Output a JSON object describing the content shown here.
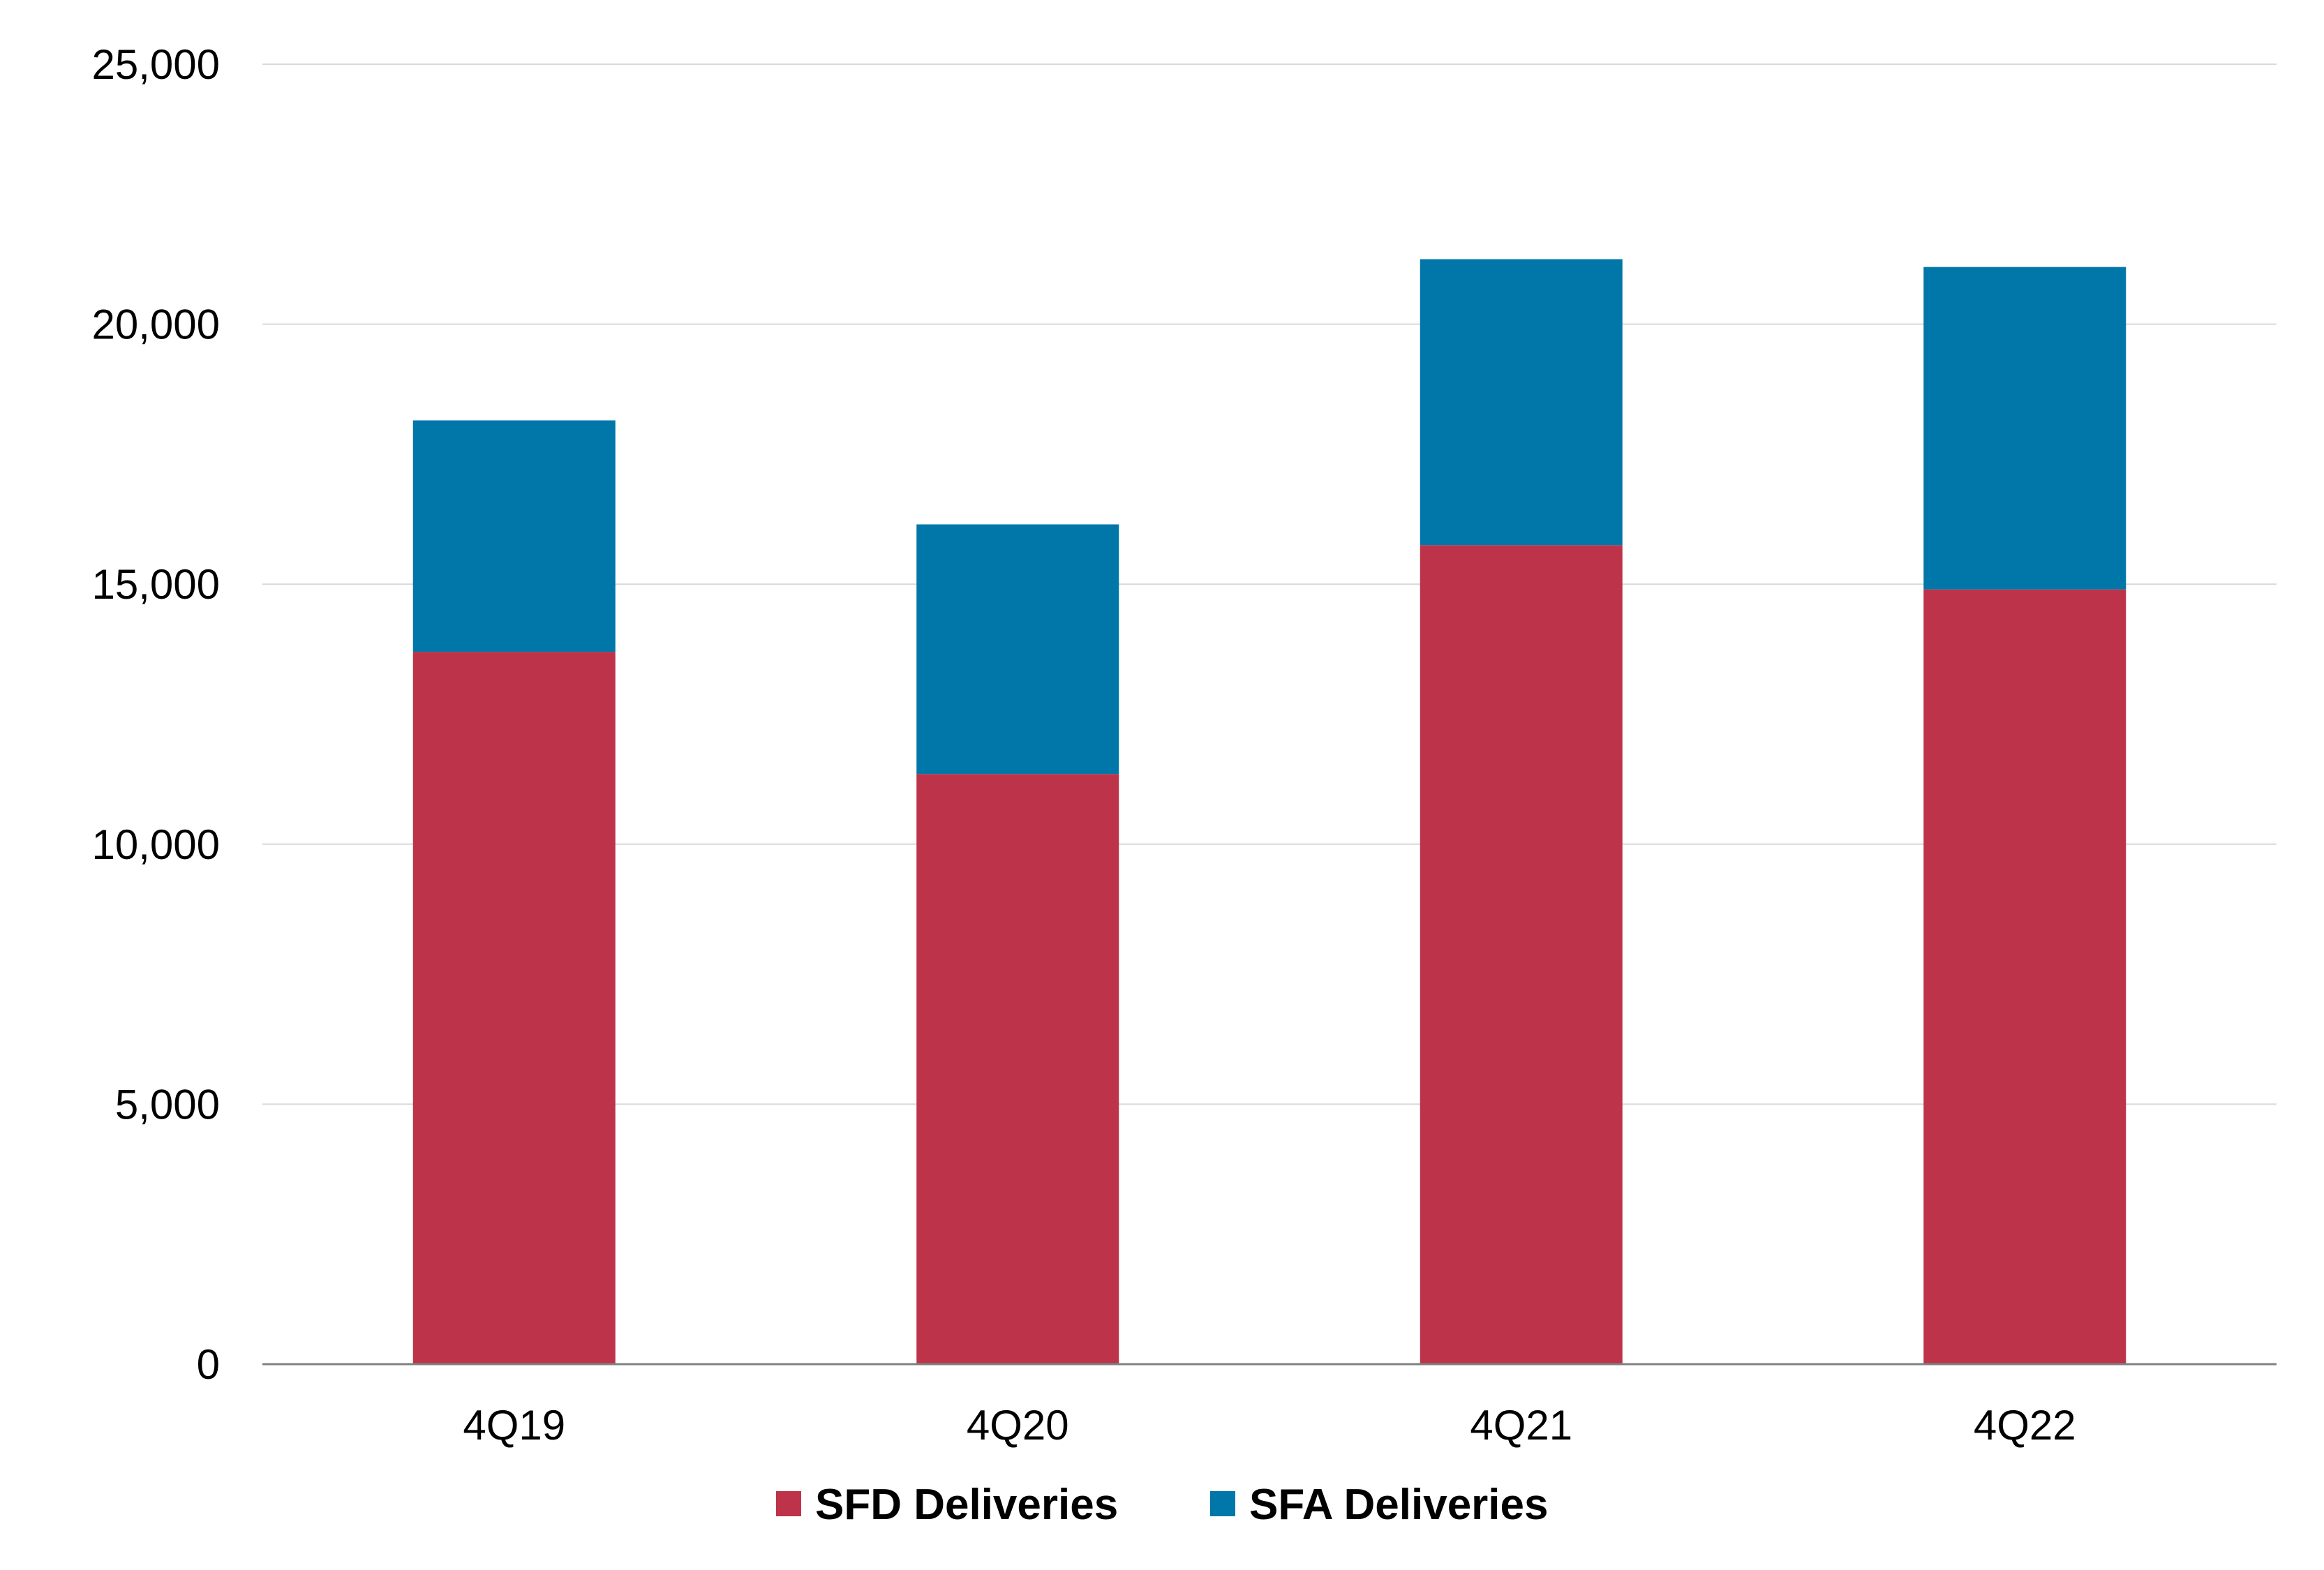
{
  "chart_data": {
    "type": "bar",
    "stacked": true,
    "categories": [
      "4Q19",
      "4Q20",
      "4Q21",
      "4Q22"
    ],
    "series": [
      {
        "name": "SFD Deliveries",
        "color": "#BD3349",
        "values": [
          13700,
          11350,
          15750,
          14900
        ]
      },
      {
        "name": "SFA Deliveries",
        "color": "#0077A8",
        "values": [
          4450,
          4800,
          5500,
          6200
        ]
      }
    ],
    "ylim": [
      0,
      25000
    ],
    "yticks": [
      0,
      5000,
      10000,
      15000,
      20000,
      25000
    ],
    "ytick_labels": [
      "0",
      "5,000",
      "10,000",
      "15,000",
      "20,000",
      "25,000"
    ],
    "grid": true,
    "grid_color": "#D9D9D9",
    "axis_color": "#808080",
    "legend_position": "bottom-center",
    "title": "",
    "xlabel": "",
    "ylabel": ""
  }
}
